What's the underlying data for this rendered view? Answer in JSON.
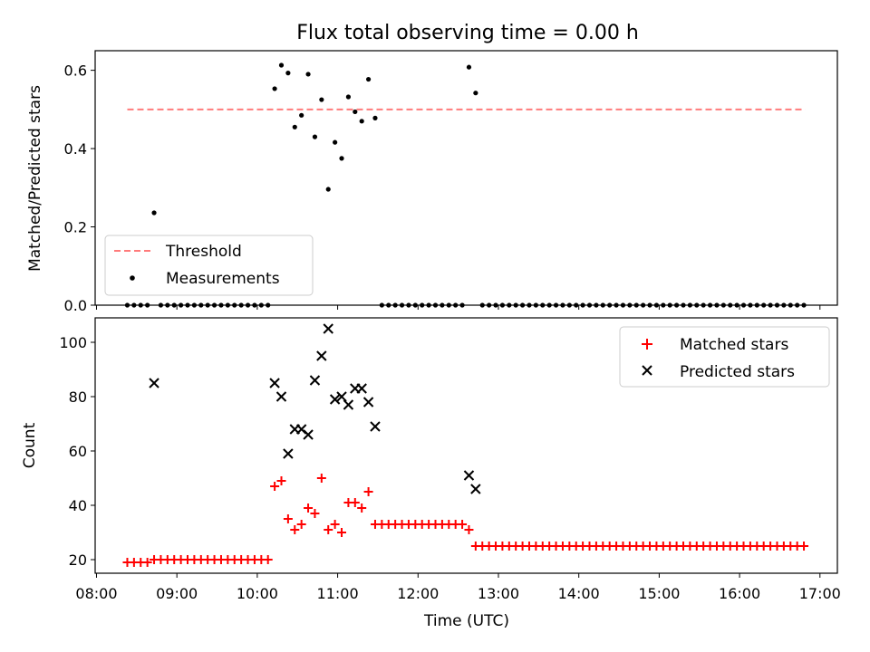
{
  "title": "Flux total observing time = 0.00 h",
  "chart_data": [
    {
      "type": "scatter",
      "ylabel": "Matched/Predicted stars",
      "xlabel": "",
      "ylim": [
        0,
        0.65
      ],
      "yticks": [
        0.0,
        0.2,
        0.4,
        0.6
      ],
      "ytick_labels": [
        "0.0",
        "0.2",
        "0.4",
        "0.6"
      ],
      "legend_position": "lower-left",
      "threshold": {
        "name": "Threshold",
        "value": 0.5,
        "x": [
          "08:23",
          "16:49"
        ],
        "color": "#ff7b7b",
        "style": "dashed"
      },
      "series": [
        {
          "name": "Measurements",
          "color": "#000000",
          "points": [
            [
              "08:23",
              0.0
            ],
            [
              "08:28",
              0.0
            ],
            [
              "08:33",
              0.0
            ],
            [
              "08:38",
              0.0
            ],
            [
              "08:43",
              0.236
            ],
            [
              "08:48",
              0.0
            ],
            [
              "08:53",
              0.0
            ],
            [
              "08:58",
              0.0
            ],
            [
              "09:03",
              0.0
            ],
            [
              "09:08",
              0.0
            ],
            [
              "09:13",
              0.0
            ],
            [
              "09:18",
              0.0
            ],
            [
              "09:23",
              0.0
            ],
            [
              "09:28",
              0.0
            ],
            [
              "09:33",
              0.0
            ],
            [
              "09:38",
              0.0
            ],
            [
              "09:43",
              0.0
            ],
            [
              "09:48",
              0.0
            ],
            [
              "09:53",
              0.0
            ],
            [
              "09:58",
              0.0
            ],
            [
              "10:03",
              0.0
            ],
            [
              "10:08",
              0.0
            ],
            [
              "10:13",
              0.553
            ],
            [
              "10:18",
              0.613
            ],
            [
              "10:23",
              0.593
            ],
            [
              "10:28",
              0.455
            ],
            [
              "10:33",
              0.485
            ],
            [
              "10:38",
              0.59
            ],
            [
              "10:43",
              0.43
            ],
            [
              "10:48",
              0.525
            ],
            [
              "10:53",
              0.296
            ],
            [
              "10:58",
              0.416
            ],
            [
              "11:03",
              0.375
            ],
            [
              "11:08",
              0.532
            ],
            [
              "11:13",
              0.494
            ],
            [
              "11:18",
              0.47
            ],
            [
              "11:23",
              0.577
            ],
            [
              "11:28",
              0.478
            ],
            [
              "11:33",
              0.0
            ],
            [
              "11:38",
              0.0
            ],
            [
              "11:43",
              0.0
            ],
            [
              "11:48",
              0.0
            ],
            [
              "11:53",
              0.0
            ],
            [
              "11:58",
              0.0
            ],
            [
              "12:03",
              0.0
            ],
            [
              "12:08",
              0.0
            ],
            [
              "12:13",
              0.0
            ],
            [
              "12:18",
              0.0
            ],
            [
              "12:23",
              0.0
            ],
            [
              "12:28",
              0.0
            ],
            [
              "12:33",
              0.0
            ],
            [
              "12:38",
              0.608
            ],
            [
              "12:43",
              0.542
            ],
            [
              "12:48",
              0.0
            ],
            [
              "12:53",
              0.0
            ],
            [
              "12:58",
              0.0
            ],
            [
              "13:03",
              0.0
            ],
            [
              "13:08",
              0.0
            ],
            [
              "13:13",
              0.0
            ],
            [
              "13:18",
              0.0
            ],
            [
              "13:23",
              0.0
            ],
            [
              "13:28",
              0.0
            ],
            [
              "13:33",
              0.0
            ],
            [
              "13:38",
              0.0
            ],
            [
              "13:43",
              0.0
            ],
            [
              "13:48",
              0.0
            ],
            [
              "13:53",
              0.0
            ],
            [
              "13:58",
              0.0
            ],
            [
              "14:03",
              0.0
            ],
            [
              "14:08",
              0.0
            ],
            [
              "14:13",
              0.0
            ],
            [
              "14:18",
              0.0
            ],
            [
              "14:23",
              0.0
            ],
            [
              "14:28",
              0.0
            ],
            [
              "14:33",
              0.0
            ],
            [
              "14:38",
              0.0
            ],
            [
              "14:43",
              0.0
            ],
            [
              "14:48",
              0.0
            ],
            [
              "14:53",
              0.0
            ],
            [
              "14:58",
              0.0
            ],
            [
              "15:03",
              0.0
            ],
            [
              "15:08",
              0.0
            ],
            [
              "15:13",
              0.0
            ],
            [
              "15:18",
              0.0
            ],
            [
              "15:23",
              0.0
            ],
            [
              "15:28",
              0.0
            ],
            [
              "15:33",
              0.0
            ],
            [
              "15:38",
              0.0
            ],
            [
              "15:43",
              0.0
            ],
            [
              "15:48",
              0.0
            ],
            [
              "15:53",
              0.0
            ],
            [
              "15:58",
              0.0
            ],
            [
              "16:03",
              0.0
            ],
            [
              "16:08",
              0.0
            ],
            [
              "16:13",
              0.0
            ],
            [
              "16:18",
              0.0
            ],
            [
              "16:23",
              0.0
            ],
            [
              "16:28",
              0.0
            ],
            [
              "16:33",
              0.0
            ],
            [
              "16:38",
              0.0
            ],
            [
              "16:43",
              0.0
            ],
            [
              "16:48",
              0.0
            ]
          ]
        }
      ]
    },
    {
      "type": "scatter",
      "ylabel": "Count",
      "xlabel": "Time (UTC)",
      "ylim": [
        15,
        109
      ],
      "yticks": [
        20,
        40,
        60,
        80,
        100
      ],
      "ytick_labels": [
        "20",
        "40",
        "60",
        "80",
        "100"
      ],
      "xlim": [
        "07:59",
        "17:13"
      ],
      "xticks": [
        "08:00",
        "09:00",
        "10:00",
        "11:00",
        "12:00",
        "13:00",
        "14:00",
        "15:00",
        "16:00",
        "17:00"
      ],
      "xtick_labels": [
        "08:00",
        "09:00",
        "10:00",
        "11:00",
        "12:00",
        "13:00",
        "14:00",
        "15:00",
        "16:00",
        "17:00"
      ],
      "legend_position": "upper-right",
      "series": [
        {
          "name": "Matched stars",
          "marker": "plus",
          "color": "#ff0000",
          "points": [
            [
              "08:23",
              19
            ],
            [
              "08:28",
              19
            ],
            [
              "08:33",
              19
            ],
            [
              "08:38",
              19
            ],
            [
              "08:43",
              20
            ],
            [
              "08:48",
              20
            ],
            [
              "08:53",
              20
            ],
            [
              "08:58",
              20
            ],
            [
              "09:03",
              20
            ],
            [
              "09:08",
              20
            ],
            [
              "09:13",
              20
            ],
            [
              "09:18",
              20
            ],
            [
              "09:23",
              20
            ],
            [
              "09:28",
              20
            ],
            [
              "09:33",
              20
            ],
            [
              "09:38",
              20
            ],
            [
              "09:43",
              20
            ],
            [
              "09:48",
              20
            ],
            [
              "09:53",
              20
            ],
            [
              "09:58",
              20
            ],
            [
              "10:03",
              20
            ],
            [
              "10:08",
              20
            ],
            [
              "10:13",
              47
            ],
            [
              "10:18",
              49
            ],
            [
              "10:23",
              35
            ],
            [
              "10:28",
              31
            ],
            [
              "10:33",
              33
            ],
            [
              "10:38",
              39
            ],
            [
              "10:43",
              37
            ],
            [
              "10:48",
              50
            ],
            [
              "10:53",
              31
            ],
            [
              "10:58",
              33
            ],
            [
              "11:03",
              30
            ],
            [
              "11:08",
              41
            ],
            [
              "11:13",
              41
            ],
            [
              "11:18",
              39
            ],
            [
              "11:23",
              45
            ],
            [
              "11:28",
              33
            ],
            [
              "11:33",
              33
            ],
            [
              "11:38",
              33
            ],
            [
              "11:43",
              33
            ],
            [
              "11:48",
              33
            ],
            [
              "11:53",
              33
            ],
            [
              "11:58",
              33
            ],
            [
              "12:03",
              33
            ],
            [
              "12:08",
              33
            ],
            [
              "12:13",
              33
            ],
            [
              "12:18",
              33
            ],
            [
              "12:23",
              33
            ],
            [
              "12:28",
              33
            ],
            [
              "12:33",
              33
            ],
            [
              "12:38",
              31
            ],
            [
              "12:43",
              25
            ],
            [
              "12:48",
              25
            ],
            [
              "12:53",
              25
            ],
            [
              "12:58",
              25
            ],
            [
              "13:03",
              25
            ],
            [
              "13:08",
              25
            ],
            [
              "13:13",
              25
            ],
            [
              "13:18",
              25
            ],
            [
              "13:23",
              25
            ],
            [
              "13:28",
              25
            ],
            [
              "13:33",
              25
            ],
            [
              "13:38",
              25
            ],
            [
              "13:43",
              25
            ],
            [
              "13:48",
              25
            ],
            [
              "13:53",
              25
            ],
            [
              "13:58",
              25
            ],
            [
              "14:03",
              25
            ],
            [
              "14:08",
              25
            ],
            [
              "14:13",
              25
            ],
            [
              "14:18",
              25
            ],
            [
              "14:23",
              25
            ],
            [
              "14:28",
              25
            ],
            [
              "14:33",
              25
            ],
            [
              "14:38",
              25
            ],
            [
              "14:43",
              25
            ],
            [
              "14:48",
              25
            ],
            [
              "14:53",
              25
            ],
            [
              "14:58",
              25
            ],
            [
              "15:03",
              25
            ],
            [
              "15:08",
              25
            ],
            [
              "15:13",
              25
            ],
            [
              "15:18",
              25
            ],
            [
              "15:23",
              25
            ],
            [
              "15:28",
              25
            ],
            [
              "15:33",
              25
            ],
            [
              "15:38",
              25
            ],
            [
              "15:43",
              25
            ],
            [
              "15:48",
              25
            ],
            [
              "15:53",
              25
            ],
            [
              "15:58",
              25
            ],
            [
              "16:03",
              25
            ],
            [
              "16:08",
              25
            ],
            [
              "16:13",
              25
            ],
            [
              "16:18",
              25
            ],
            [
              "16:23",
              25
            ],
            [
              "16:28",
              25
            ],
            [
              "16:33",
              25
            ],
            [
              "16:38",
              25
            ],
            [
              "16:43",
              25
            ],
            [
              "16:48",
              25
            ]
          ]
        },
        {
          "name": "Predicted stars",
          "marker": "x",
          "color": "#000000",
          "points": [
            [
              "08:43",
              85
            ],
            [
              "10:13",
              85
            ],
            [
              "10:18",
              80
            ],
            [
              "10:23",
              59
            ],
            [
              "10:28",
              68
            ],
            [
              "10:33",
              68
            ],
            [
              "10:38",
              66
            ],
            [
              "10:43",
              86
            ],
            [
              "10:48",
              95
            ],
            [
              "10:53",
              105
            ],
            [
              "10:58",
              79
            ],
            [
              "11:03",
              80
            ],
            [
              "11:08",
              77
            ],
            [
              "11:13",
              83
            ],
            [
              "11:18",
              83
            ],
            [
              "11:23",
              78
            ],
            [
              "11:28",
              69
            ],
            [
              "12:38",
              51
            ],
            [
              "12:43",
              46
            ]
          ]
        }
      ]
    }
  ]
}
